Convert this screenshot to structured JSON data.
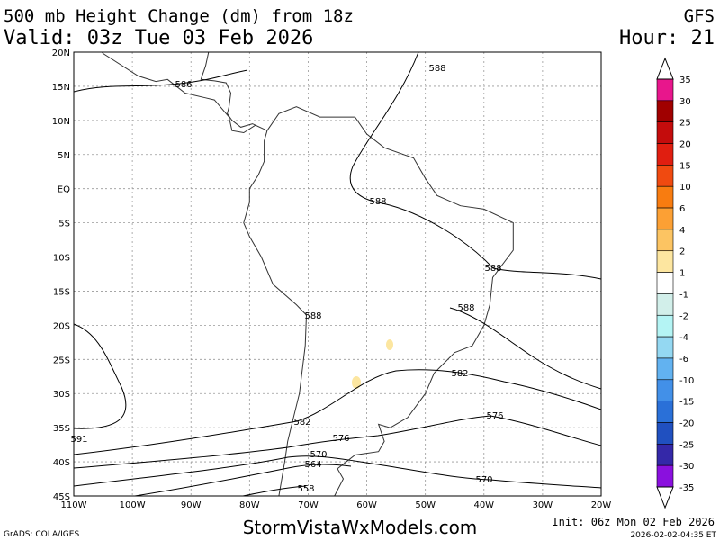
{
  "header": {
    "title": "500 mb Height Change (dm) from 18z",
    "model": "GFS",
    "valid": "Valid: 03z Tue 03 Feb 2026",
    "hour": "Hour: 21"
  },
  "map": {
    "lat_labels": [
      "20N",
      "15N",
      "10N",
      "5N",
      "EQ",
      "5S",
      "10S",
      "15S",
      "20S",
      "25S",
      "30S",
      "35S",
      "40S",
      "45S"
    ],
    "lon_labels": [
      "110W",
      "100W",
      "90W",
      "80W",
      "70W",
      "60W",
      "50W",
      "40W",
      "30W",
      "20W"
    ],
    "contour_labels": [
      "588",
      "586",
      "588",
      "588",
      "588",
      "588",
      "582",
      "582",
      "576",
      "576",
      "570",
      "570",
      "564",
      "558",
      "591"
    ]
  },
  "colorbar": {
    "labels": [
      "35",
      "30",
      "25",
      "20",
      "15",
      "10",
      "6",
      "4",
      "2",
      "1",
      "-1",
      "-2",
      "-4",
      "-6",
      "-10",
      "-15",
      "-20",
      "-25",
      "-30",
      "-35"
    ],
    "colors": [
      "#e8168c",
      "#a00000",
      "#c40c0c",
      "#e01e10",
      "#f04a10",
      "#f87c10",
      "#fca034",
      "#fcc462",
      "#fde6a0",
      "#ffffff",
      "#d2efea",
      "#b4f4f4",
      "#94d8f2",
      "#62b2f0",
      "#4290e8",
      "#2a70d8",
      "#2050c0",
      "#3428a8",
      "#8a10de"
    ]
  },
  "footer": {
    "credit": "GrADS: COLA/IGES",
    "site": "StormVistaWxModels.com",
    "init": "Init: 06z Mon 02 Feb 2026",
    "timestamp": "2026-02-02-04:35 ET"
  }
}
